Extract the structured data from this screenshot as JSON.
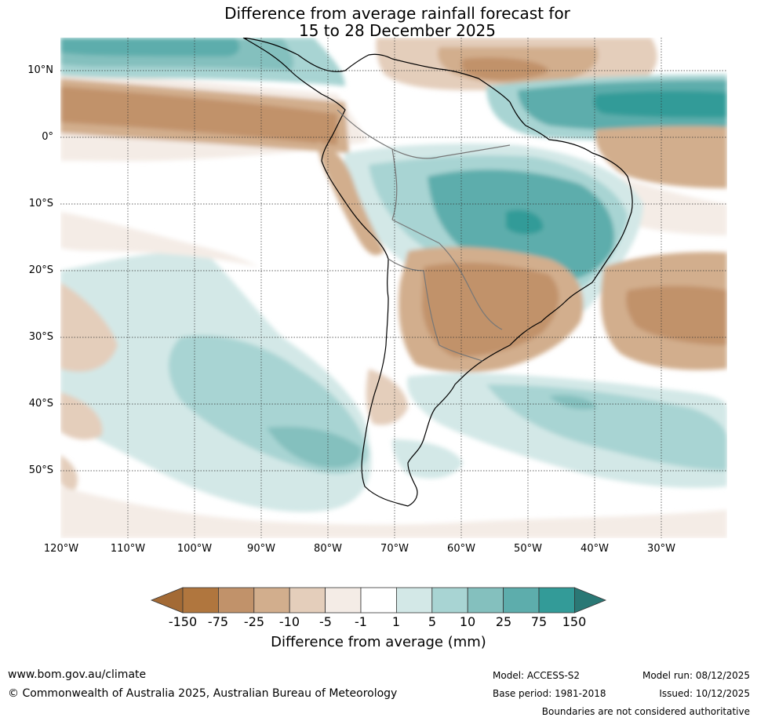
{
  "title": {
    "line1": "Difference from average rainfall forecast for",
    "line2": "15 to 28 December 2025"
  },
  "latitude_labels": [
    "10°N",
    "0°",
    "10°S",
    "20°S",
    "30°S",
    "40°S",
    "50°S"
  ],
  "longitude_labels": [
    "120°W",
    "110°W",
    "100°W",
    "90°W",
    "80°W",
    "70°W",
    "60°W",
    "50°W",
    "40°W",
    "30°W"
  ],
  "colorbar": {
    "ticks": [
      "-150",
      "-75",
      "-25",
      "-10",
      "-5",
      "-1",
      "1",
      "5",
      "10",
      "25",
      "75",
      "150"
    ],
    "colors": [
      "#a36a35",
      "#b0763e",
      "#c1926a",
      "#d2ae8d",
      "#e4cebb",
      "#f4ece6",
      "#ffffff",
      "#d3e8e7",
      "#a8d4d3",
      "#84c0be",
      "#5dadac",
      "#339b98",
      "#2a7875"
    ],
    "label": "Difference from average (mm)"
  },
  "footer": {
    "website": "www.bom.gov.au/climate",
    "copyright": "© Commonwealth of Australia 2025, Australian Bureau of Meteorology",
    "model": "Model: ACCESS-S2",
    "base_period": "Base period: 1981-2018",
    "model_run": "Model run: 08/12/2025",
    "issued": "Issued: 10/12/2025",
    "disclaimer": "Boundaries are not considered authoritative"
  }
}
